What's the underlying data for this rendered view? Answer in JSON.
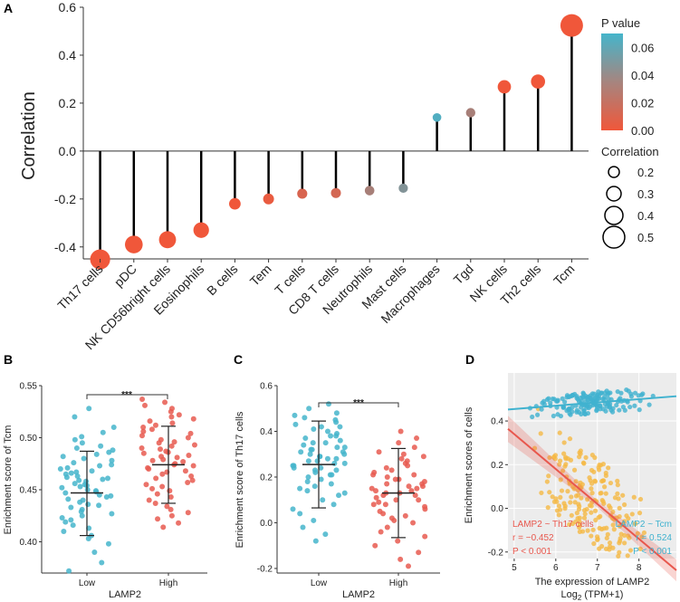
{
  "figure": {
    "panels": [
      "A",
      "B",
      "C",
      "D"
    ]
  },
  "colors": {
    "low_p": "#F0573A",
    "high_p": "#45B5CB",
    "low_group": "#45B5CB",
    "high_group": "#E85A50",
    "th17_scatter": "#F5B945",
    "th17_line": "#E8574D",
    "tcm_line": "#40B2CF"
  },
  "chart_data": [
    {
      "id": "A",
      "type": "lollipop",
      "ylabel": "Correlation",
      "ylim": [
        -0.45,
        0.6
      ],
      "yticks": [
        -0.4,
        -0.2,
        0.0,
        0.2,
        0.4,
        0.6
      ],
      "ytick_labels": [
        "-0.4",
        "-0.2",
        "0.0",
        "0.2",
        "0.4",
        "0.6"
      ],
      "categories": [
        "Th17 cells",
        "pDC",
        "NK CD56bright cells",
        "Eosinophils",
        "B cells",
        "Tem",
        "T cells",
        "CD8 T cells",
        "Neutrophils",
        "Mast cells",
        "Macrophages",
        "Tgd",
        "NK cells",
        "Th2 cells",
        "Tcm"
      ],
      "values": [
        -0.452,
        -0.39,
        -0.37,
        -0.33,
        -0.22,
        -0.2,
        -0.178,
        -0.175,
        -0.165,
        -0.155,
        0.14,
        0.16,
        0.268,
        0.29,
        0.524
      ],
      "pvalues": [
        0.0,
        0.0,
        0.0,
        0.0,
        0.0,
        0.003,
        0.01,
        0.012,
        0.03,
        0.045,
        0.065,
        0.03,
        0.0,
        0.0,
        0.0
      ],
      "legend": {
        "pvalue_title": "P value",
        "pvalue_range": [
          0.0,
          0.07
        ],
        "pvalue_ticks": [
          "0.00",
          "0.02",
          "0.04",
          "0.06"
        ],
        "pvalue_tick_values": [
          0.0,
          0.02,
          0.04,
          0.06
        ],
        "size_title": "Correlation",
        "size_values": [
          "0.2",
          "0.3",
          "0.4",
          "0.5"
        ],
        "size_levels": [
          0.2,
          0.3,
          0.4,
          0.5
        ]
      }
    },
    {
      "id": "B",
      "type": "scatter",
      "xlabel": "LAMP2",
      "ylabel": "Enrichment score of Tcm",
      "ylim": [
        0.37,
        0.55
      ],
      "yticks": [
        0.4,
        0.45,
        0.5,
        0.55
      ],
      "ytick_labels": [
        "0.40",
        "0.45",
        "0.50",
        "0.55"
      ],
      "categories": [
        "Low",
        "High"
      ],
      "significance": "***",
      "groups": [
        {
          "name": "Low",
          "mean": 0.447,
          "sd_low": 0.406,
          "sd_high": 0.487,
          "values": [
            0.372,
            0.38,
            0.39,
            0.398,
            0.403,
            0.406,
            0.41,
            0.413,
            0.416,
            0.419,
            0.421,
            0.423,
            0.425,
            0.427,
            0.429,
            0.431,
            0.433,
            0.435,
            0.436,
            0.438,
            0.44,
            0.441,
            0.443,
            0.444,
            0.445,
            0.447,
            0.448,
            0.449,
            0.45,
            0.452,
            0.453,
            0.454,
            0.455,
            0.456,
            0.458,
            0.459,
            0.46,
            0.461,
            0.462,
            0.463,
            0.465,
            0.466,
            0.467,
            0.468,
            0.47,
            0.471,
            0.473,
            0.474,
            0.476,
            0.478,
            0.48,
            0.482,
            0.484,
            0.486,
            0.488,
            0.49,
            0.492,
            0.495,
            0.498,
            0.501,
            0.505,
            0.51,
            0.52,
            0.528
          ]
        },
        {
          "name": "High",
          "mean": 0.474,
          "sd_low": 0.437,
          "sd_high": 0.511,
          "values": [
            0.414,
            0.418,
            0.422,
            0.425,
            0.428,
            0.431,
            0.434,
            0.437,
            0.44,
            0.443,
            0.446,
            0.449,
            0.451,
            0.453,
            0.455,
            0.457,
            0.459,
            0.461,
            0.463,
            0.465,
            0.467,
            0.468,
            0.47,
            0.471,
            0.473,
            0.474,
            0.475,
            0.477,
            0.478,
            0.479,
            0.481,
            0.482,
            0.483,
            0.485,
            0.486,
            0.487,
            0.489,
            0.49,
            0.492,
            0.493,
            0.495,
            0.496,
            0.498,
            0.5,
            0.502,
            0.504,
            0.506,
            0.508,
            0.51,
            0.512,
            0.514,
            0.516,
            0.518,
            0.52,
            0.522,
            0.525,
            0.528,
            0.531,
            0.534,
            0.537
          ]
        }
      ]
    },
    {
      "id": "C",
      "type": "scatter",
      "xlabel": "LAMP2",
      "ylabel": "Enrichment score of Th17 cells",
      "ylim": [
        -0.22,
        0.6
      ],
      "yticks": [
        -0.2,
        0.0,
        0.2,
        0.4,
        0.6
      ],
      "ytick_labels": [
        "-0.2",
        "0.0",
        "0.2",
        "0.4",
        "0.6"
      ],
      "categories": [
        "Low",
        "High"
      ],
      "significance": "***",
      "groups": [
        {
          "name": "Low",
          "mean": 0.255,
          "sd_low": 0.065,
          "sd_high": 0.445,
          "values": [
            -0.08,
            -0.05,
            -0.02,
            0.01,
            0.04,
            0.06,
            0.08,
            0.1,
            0.12,
            0.13,
            0.14,
            0.15,
            0.16,
            0.17,
            0.18,
            0.19,
            0.2,
            0.21,
            0.21,
            0.22,
            0.23,
            0.23,
            0.24,
            0.24,
            0.25,
            0.25,
            0.26,
            0.26,
            0.27,
            0.27,
            0.28,
            0.28,
            0.29,
            0.29,
            0.3,
            0.3,
            0.31,
            0.31,
            0.32,
            0.32,
            0.33,
            0.33,
            0.34,
            0.35,
            0.35,
            0.36,
            0.37,
            0.38,
            0.38,
            0.39,
            0.4,
            0.41,
            0.42,
            0.42,
            0.43,
            0.44,
            0.45,
            0.46,
            0.47,
            0.48,
            0.5,
            0.52
          ]
        },
        {
          "name": "High",
          "mean": 0.13,
          "sd_low": -0.065,
          "sd_high": 0.325,
          "values": [
            -0.19,
            -0.16,
            -0.13,
            -0.1,
            -0.08,
            -0.06,
            -0.04,
            -0.02,
            0.0,
            0.01,
            0.02,
            0.03,
            0.04,
            0.05,
            0.06,
            0.07,
            0.08,
            0.08,
            0.09,
            0.1,
            0.1,
            0.11,
            0.12,
            0.12,
            0.13,
            0.13,
            0.14,
            0.14,
            0.15,
            0.15,
            0.16,
            0.16,
            0.17,
            0.17,
            0.18,
            0.19,
            0.19,
            0.2,
            0.21,
            0.21,
            0.22,
            0.23,
            0.24,
            0.25,
            0.26,
            0.27,
            0.28,
            0.29,
            0.3,
            0.31,
            0.33,
            0.35,
            0.37,
            0.4
          ]
        }
      ]
    },
    {
      "id": "D",
      "type": "scatter",
      "xlabel": "The expression of LAMP2",
      "xlabel2_prefix": "Log",
      "xlabel2_sub": "2",
      "xlabel2_suffix": " (TPM+1)",
      "ylabel": "Enrichment scores of cells",
      "xlim": [
        4.85,
        8.9
      ],
      "ylim": [
        -0.23,
        0.62
      ],
      "xticks": [
        5,
        6,
        7,
        8
      ],
      "xtick_labels": [
        "5",
        "6",
        "7",
        "8"
      ],
      "yticks": [
        -0.2,
        0.0,
        0.2,
        0.4
      ],
      "ytick_labels": [
        "-0.2",
        "0.0",
        "0.2",
        "0.4"
      ],
      "series": [
        {
          "name": "LAMP2 ~ Th17 cells",
          "r_text": "r = −0.452",
          "p_text": "P < 0.001",
          "fit": {
            "slope": -0.16,
            "intercept": 1.14
          }
        },
        {
          "name": "LAMP2 ~ Tcm",
          "r_text": "r = 0.524",
          "p_text": "P < 0.001",
          "fit": {
            "slope": 0.015,
            "intercept": 0.38
          }
        }
      ]
    }
  ]
}
